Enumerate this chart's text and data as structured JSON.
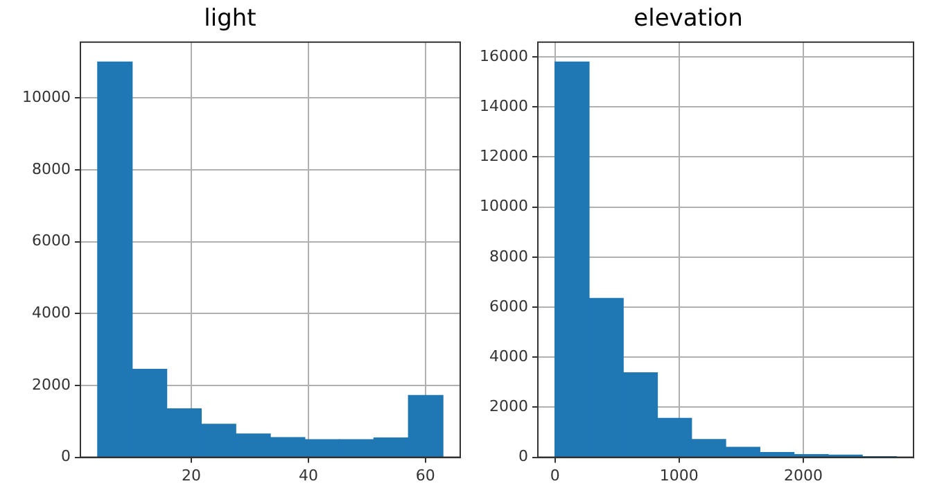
{
  "chart_data": [
    {
      "type": "histogram",
      "title": "light",
      "bins": [
        4,
        9.9,
        15.8,
        21.7,
        27.6,
        33.5,
        39.4,
        45.3,
        51.2,
        57.1,
        63
      ],
      "values": [
        11000,
        2450,
        1350,
        920,
        650,
        550,
        490,
        490,
        540,
        1720
      ],
      "color": "#1f77b4",
      "xlim": [
        1.05,
        65.95
      ],
      "ylim": [
        0,
        11550
      ],
      "xticks": [
        20,
        40,
        60
      ],
      "yticks": [
        0,
        2000,
        4000,
        6000,
        8000,
        10000
      ],
      "grid": true
    },
    {
      "type": "histogram",
      "title": "elevation",
      "bins": [
        0,
        275,
        550,
        825,
        1100,
        1375,
        1650,
        1925,
        2200,
        2475,
        2750
      ],
      "values": [
        15800,
        6350,
        3380,
        1560,
        710,
        400,
        190,
        110,
        90,
        20
      ],
      "color": "#1f77b4",
      "xlim": [
        -137.5,
        2887.5
      ],
      "ylim": [
        0,
        16590
      ],
      "xticks": [
        0,
        1000,
        2000
      ],
      "yticks": [
        0,
        2000,
        4000,
        6000,
        8000,
        10000,
        12000,
        14000,
        16000
      ],
      "grid": true
    }
  ]
}
